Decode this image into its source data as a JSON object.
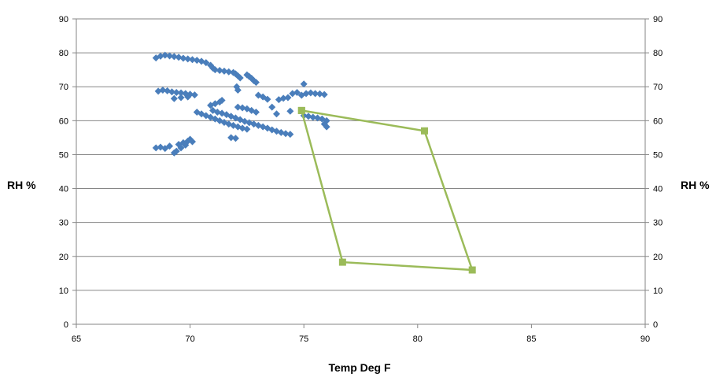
{
  "chart_data": {
    "type": "scatter",
    "title": "",
    "xlabel": "Temp Deg F",
    "ylabel": "RH %",
    "ylabel_right": "RH %",
    "xlim": [
      65,
      90
    ],
    "ylim": [
      0,
      90
    ],
    "x_ticks": [
      "65",
      "70",
      "75",
      "80",
      "85",
      "90"
    ],
    "y_ticks": [
      "0",
      "10",
      "20",
      "30",
      "40",
      "50",
      "60",
      "70",
      "80",
      "90"
    ],
    "y2_ticks": [
      "0",
      "10",
      "20",
      "30",
      "40",
      "50",
      "60",
      "70",
      "80",
      "90"
    ],
    "grid": "horizontal",
    "legend": "none",
    "series": [
      {
        "marker": "diamond",
        "color": "#4a7ebb",
        "points": [
          [
            68.5,
            78.5
          ],
          [
            68.7,
            79.0
          ],
          [
            68.9,
            79.3
          ],
          [
            69.1,
            79.1
          ],
          [
            69.3,
            78.9
          ],
          [
            69.5,
            78.7
          ],
          [
            69.7,
            78.4
          ],
          [
            69.9,
            78.2
          ],
          [
            70.1,
            78.0
          ],
          [
            70.3,
            77.8
          ],
          [
            70.5,
            77.5
          ],
          [
            70.7,
            77.1
          ],
          [
            70.9,
            76.3
          ],
          [
            71.0,
            75.5
          ],
          [
            71.1,
            75.0
          ],
          [
            71.3,
            74.8
          ],
          [
            71.5,
            74.6
          ],
          [
            71.7,
            74.4
          ],
          [
            71.9,
            74.2
          ],
          [
            72.0,
            73.8
          ],
          [
            72.1,
            73.2
          ],
          [
            72.2,
            72.6
          ],
          [
            72.05,
            70.0
          ],
          [
            72.1,
            69.0
          ],
          [
            72.5,
            73.5
          ],
          [
            72.6,
            73.0
          ],
          [
            72.7,
            72.5
          ],
          [
            72.8,
            71.8
          ],
          [
            72.9,
            71.3
          ],
          [
            68.6,
            68.7
          ],
          [
            68.8,
            69.0
          ],
          [
            69.0,
            68.8
          ],
          [
            69.2,
            68.5
          ],
          [
            69.4,
            68.3
          ],
          [
            69.6,
            68.2
          ],
          [
            69.8,
            68.0
          ],
          [
            70.0,
            67.8
          ],
          [
            70.2,
            67.6
          ],
          [
            69.3,
            66.5
          ],
          [
            69.6,
            66.8
          ],
          [
            69.9,
            67.0
          ],
          [
            70.9,
            64.5
          ],
          [
            71.1,
            65.0
          ],
          [
            71.3,
            65.5
          ],
          [
            71.4,
            66.0
          ],
          [
            70.3,
            62.5
          ],
          [
            70.5,
            62.0
          ],
          [
            70.7,
            61.5
          ],
          [
            70.9,
            61.0
          ],
          [
            71.1,
            60.5
          ],
          [
            71.3,
            60.0
          ],
          [
            71.5,
            59.5
          ],
          [
            71.7,
            59.0
          ],
          [
            71.9,
            58.6
          ],
          [
            72.1,
            58.2
          ],
          [
            72.3,
            57.8
          ],
          [
            72.5,
            57.5
          ],
          [
            71.0,
            63.0
          ],
          [
            71.2,
            62.5
          ],
          [
            71.4,
            62.2
          ],
          [
            71.6,
            61.8
          ],
          [
            71.8,
            61.3
          ],
          [
            72.0,
            60.8
          ],
          [
            72.2,
            60.3
          ],
          [
            72.4,
            59.8
          ],
          [
            72.6,
            59.4
          ],
          [
            72.8,
            59.0
          ],
          [
            73.0,
            58.6
          ],
          [
            73.2,
            58.2
          ],
          [
            73.4,
            57.8
          ],
          [
            73.6,
            57.3
          ],
          [
            73.8,
            56.9
          ],
          [
            74.0,
            56.5
          ],
          [
            74.2,
            56.2
          ],
          [
            74.4,
            56.0
          ],
          [
            72.1,
            64.0
          ],
          [
            72.3,
            63.8
          ],
          [
            72.5,
            63.5
          ],
          [
            72.7,
            63.0
          ],
          [
            72.9,
            62.5
          ],
          [
            71.8,
            55.0
          ],
          [
            72.0,
            54.8
          ],
          [
            73.0,
            67.5
          ],
          [
            73.2,
            67.0
          ],
          [
            73.4,
            66.3
          ],
          [
            73.6,
            64.0
          ],
          [
            73.8,
            62.0
          ],
          [
            73.9,
            66.2
          ],
          [
            74.1,
            66.6
          ],
          [
            74.3,
            66.8
          ],
          [
            74.5,
            68.0
          ],
          [
            74.7,
            68.3
          ],
          [
            75.0,
            70.8
          ],
          [
            74.9,
            67.5
          ],
          [
            75.1,
            68.0
          ],
          [
            75.3,
            68.2
          ],
          [
            75.5,
            68.0
          ],
          [
            75.7,
            67.9
          ],
          [
            75.9,
            67.7
          ],
          [
            74.4,
            62.8
          ],
          [
            75.0,
            61.5
          ],
          [
            75.2,
            61.3
          ],
          [
            75.4,
            61.0
          ],
          [
            75.6,
            60.8
          ],
          [
            75.8,
            60.5
          ],
          [
            76.0,
            60.0
          ],
          [
            75.9,
            59.0
          ],
          [
            76.0,
            58.2
          ],
          [
            68.5,
            52.0
          ],
          [
            68.7,
            52.2
          ],
          [
            68.9,
            51.8
          ],
          [
            69.1,
            52.5
          ],
          [
            69.3,
            50.5
          ],
          [
            69.4,
            51.0
          ],
          [
            69.5,
            53.0
          ],
          [
            69.7,
            53.5
          ],
          [
            69.9,
            54.0
          ],
          [
            70.0,
            54.5
          ],
          [
            70.1,
            53.8
          ],
          [
            69.6,
            52.0
          ],
          [
            69.8,
            52.8
          ]
        ]
      },
      {
        "marker": "square",
        "color": "#9bbb59",
        "points": [
          [
            74.9,
            63.0
          ],
          [
            80.3,
            57.0
          ],
          [
            82.4,
            16.0
          ],
          [
            76.7,
            18.3
          ],
          [
            74.9,
            63.0
          ]
        ]
      }
    ]
  }
}
